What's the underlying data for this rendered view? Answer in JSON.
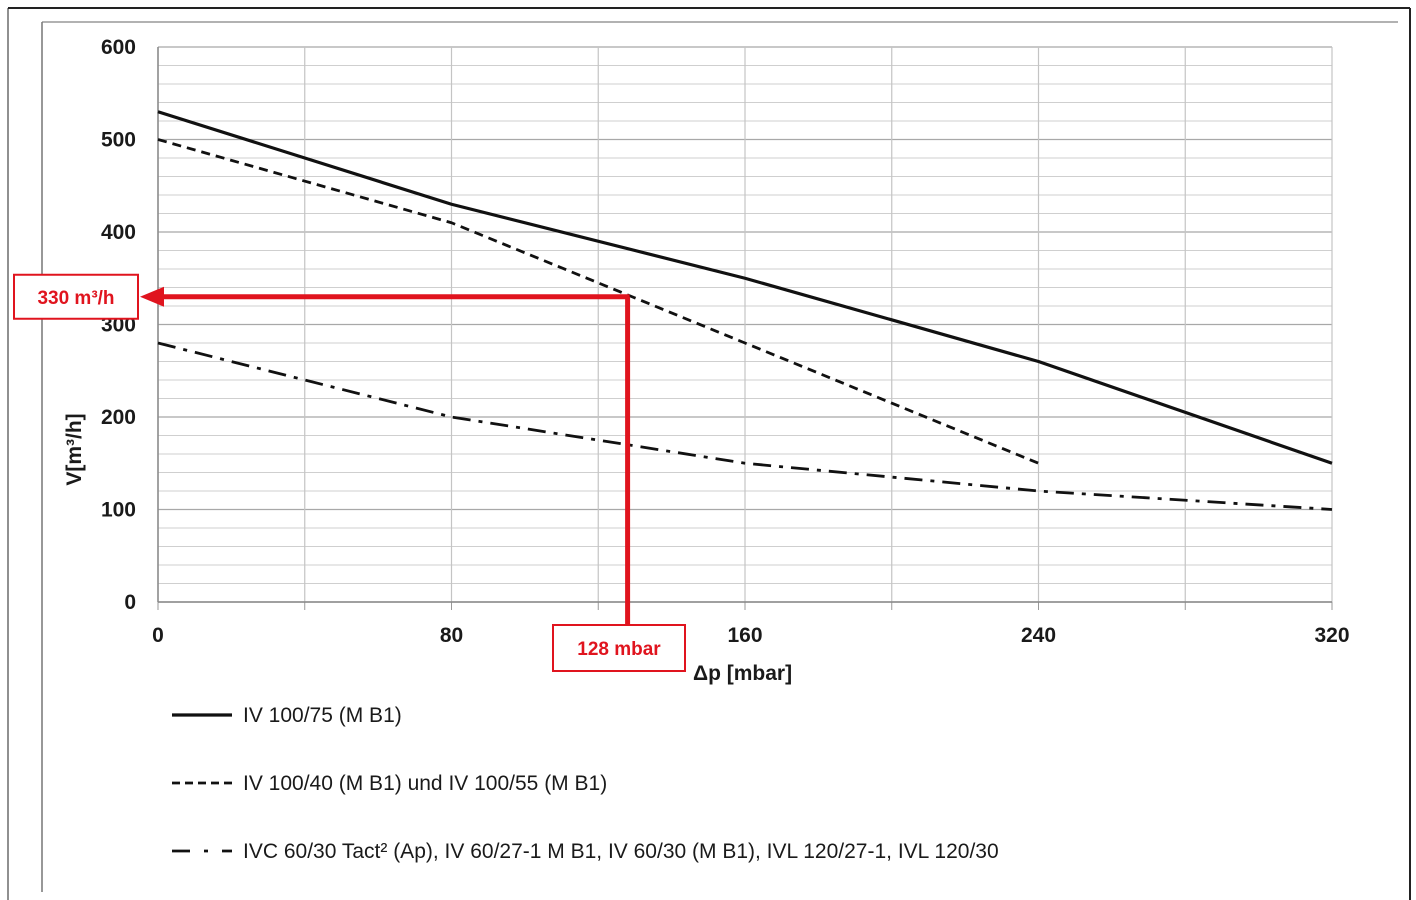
{
  "chart_data": {
    "type": "line",
    "title": "",
    "xlabel": "Δp [mbar]",
    "ylabel": "V[m³/h]",
    "xlim": [
      0,
      320
    ],
    "ylim": [
      0,
      600
    ],
    "x_ticks": [
      "0",
      "80",
      "160",
      "240",
      "320"
    ],
    "y_ticks": [
      "0",
      "100",
      "200",
      "300",
      "400",
      "500",
      "600"
    ],
    "grid": true,
    "legend_position": "bottom",
    "series": [
      {
        "name": "IV 100/75 (M B1)",
        "style": "solid",
        "color": "#111111",
        "points": [
          [
            0,
            530
          ],
          [
            80,
            430
          ],
          [
            160,
            350
          ],
          [
            240,
            260
          ],
          [
            320,
            150
          ]
        ]
      },
      {
        "name": "IV 100/40 (M B1) und IV 100/55 (M B1)",
        "style": "dashed",
        "color": "#111111",
        "points": [
          [
            0,
            500
          ],
          [
            80,
            410
          ],
          [
            160,
            280
          ],
          [
            240,
            150
          ]
        ]
      },
      {
        "name": "IVC 60/30 Tact² (Ap), IV 60/27-1 M B1, IV 60/30 (M B1), IVL 120/27-1, IVL 120/30",
        "style": "dashdot",
        "color": "#111111",
        "points": [
          [
            0,
            280
          ],
          [
            80,
            200
          ],
          [
            160,
            150
          ],
          [
            240,
            120
          ],
          [
            320,
            100
          ]
        ]
      }
    ],
    "annotations": {
      "color": "#e0141e",
      "point": [
        128,
        330
      ],
      "y_label": "330 m³/h",
      "x_label": "128 mbar"
    }
  }
}
